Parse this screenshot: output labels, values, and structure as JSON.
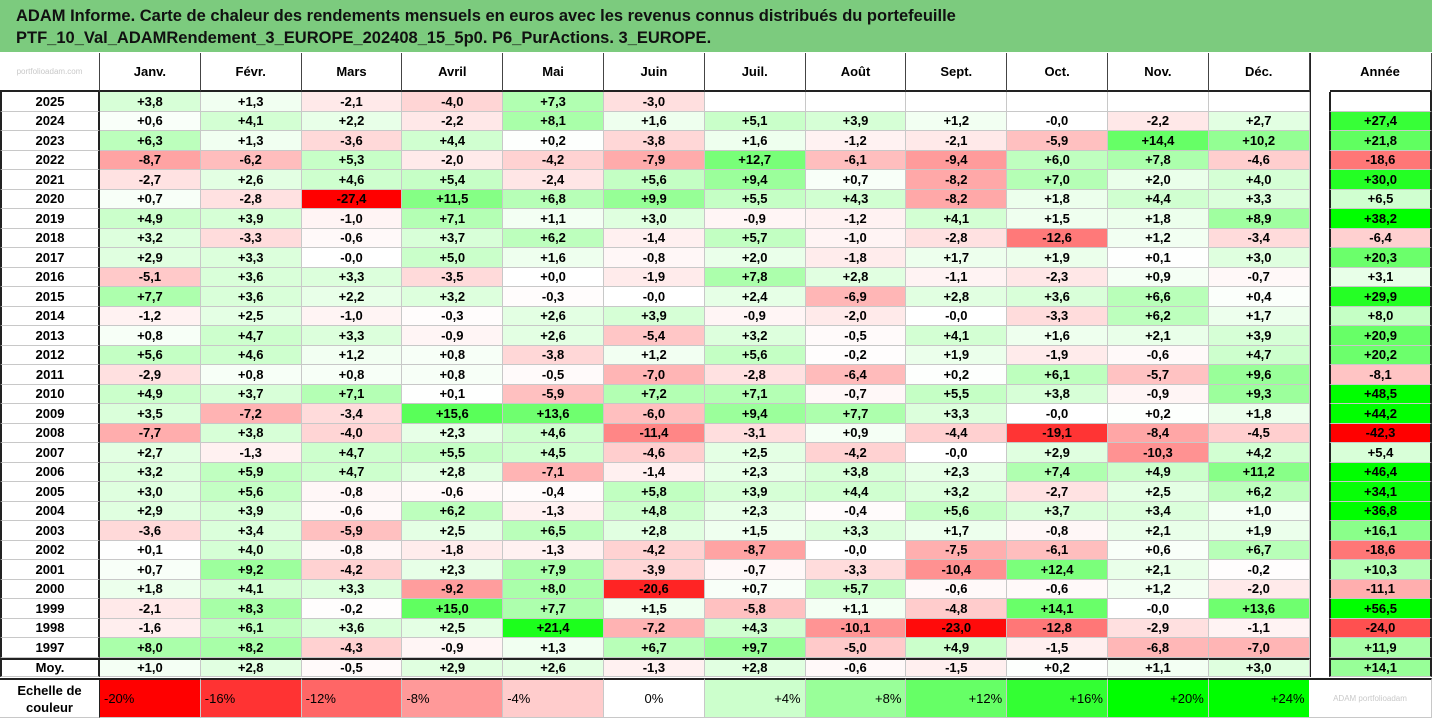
{
  "title": {
    "line1": "ADAM Informe. Carte de chaleur des rendements mensuels en euros avec les revenus connus distribués du portefeuille",
    "line2": "PTF_10_Val_ADAMRendement_3_EUROPE_202408_15_5p0. P6_PurActions. 3_EUROPE."
  },
  "watermark": "portfolioadam.com",
  "watermark_br": "ADAM portfolioadam",
  "chart_data": {
    "type": "heatmap",
    "columns": [
      "Janv.",
      "Févr.",
      "Mars",
      "Avril",
      "Mai",
      "Juin",
      "Juil.",
      "Août",
      "Sept.",
      "Oct.",
      "Nov.",
      "Déc."
    ],
    "year_column": "Année",
    "rows": [
      {
        "year": "2025",
        "values": [
          "+3,8",
          "+1,3",
          "-2,1",
          "-4,0",
          "+7,3",
          "-3,0",
          "",
          "",
          "",
          "",
          "",
          ""
        ],
        "annual": ""
      },
      {
        "year": "2024",
        "values": [
          "+0,6",
          "+4,1",
          "+2,2",
          "-2,2",
          "+8,1",
          "+1,6",
          "+5,1",
          "+3,9",
          "+1,2",
          "-0,0",
          "-2,2",
          "+2,7"
        ],
        "annual": "+27,4"
      },
      {
        "year": "2023",
        "values": [
          "+6,3",
          "+1,3",
          "-3,6",
          "+4,4",
          "+0,2",
          "-3,8",
          "+1,6",
          "-1,2",
          "-2,1",
          "-5,9",
          "+14,4",
          "+10,2"
        ],
        "annual": "+21,8"
      },
      {
        "year": "2022",
        "values": [
          "-8,7",
          "-6,2",
          "+5,3",
          "-2,0",
          "-4,2",
          "-7,9",
          "+12,7",
          "-6,1",
          "-9,4",
          "+6,0",
          "+7,8",
          "-4,6"
        ],
        "annual": "-18,6"
      },
      {
        "year": "2021",
        "values": [
          "-2,7",
          "+2,6",
          "+4,6",
          "+5,4",
          "-2,4",
          "+5,6",
          "+9,4",
          "+0,7",
          "-8,2",
          "+7,0",
          "+2,0",
          "+4,0"
        ],
        "annual": "+30,0"
      },
      {
        "year": "2020",
        "values": [
          "+0,7",
          "-2,8",
          "-27,4",
          "+11,5",
          "+6,8",
          "+9,9",
          "+5,5",
          "+4,3",
          "-8,2",
          "+1,8",
          "+4,4",
          "+3,3"
        ],
        "annual": "+6,5"
      },
      {
        "year": "2019",
        "values": [
          "+4,9",
          "+3,9",
          "-1,0",
          "+7,1",
          "+1,1",
          "+3,0",
          "-0,9",
          "-1,2",
          "+4,1",
          "+1,5",
          "+1,8",
          "+8,9"
        ],
        "annual": "+38,2"
      },
      {
        "year": "2018",
        "values": [
          "+3,2",
          "-3,3",
          "-0,6",
          "+3,7",
          "+6,2",
          "-1,4",
          "+5,7",
          "-1,0",
          "-2,8",
          "-12,6",
          "+1,2",
          "-3,4"
        ],
        "annual": "-6,4"
      },
      {
        "year": "2017",
        "values": [
          "+2,9",
          "+3,3",
          "-0,0",
          "+5,0",
          "+1,6",
          "-0,8",
          "+2,0",
          "-1,8",
          "+1,7",
          "+1,9",
          "+0,1",
          "+3,0"
        ],
        "annual": "+20,3"
      },
      {
        "year": "2016",
        "values": [
          "-5,1",
          "+3,6",
          "+3,3",
          "-3,5",
          "+0,0",
          "-1,9",
          "+7,8",
          "+2,8",
          "-1,1",
          "-2,3",
          "+0,9",
          "-0,7"
        ],
        "annual": "+3,1"
      },
      {
        "year": "2015",
        "values": [
          "+7,7",
          "+3,6",
          "+2,2",
          "+3,2",
          "-0,3",
          "-0,0",
          "+2,4",
          "-6,9",
          "+2,8",
          "+3,6",
          "+6,6",
          "+0,4"
        ],
        "annual": "+29,9"
      },
      {
        "year": "2014",
        "values": [
          "-1,2",
          "+2,5",
          "-1,0",
          "-0,3",
          "+2,6",
          "+3,9",
          "-0,9",
          "-2,0",
          "-0,0",
          "-3,3",
          "+6,2",
          "+1,7"
        ],
        "annual": "+8,0"
      },
      {
        "year": "2013",
        "values": [
          "+0,8",
          "+4,7",
          "+3,3",
          "-0,9",
          "+2,6",
          "-5,4",
          "+3,2",
          "-0,5",
          "+4,1",
          "+1,6",
          "+2,1",
          "+3,9"
        ],
        "annual": "+20,9"
      },
      {
        "year": "2012",
        "values": [
          "+5,6",
          "+4,6",
          "+1,2",
          "+0,8",
          "-3,8",
          "+1,2",
          "+5,6",
          "-0,2",
          "+1,9",
          "-1,9",
          "-0,6",
          "+4,7"
        ],
        "annual": "+20,2"
      },
      {
        "year": "2011",
        "values": [
          "-2,9",
          "+0,8",
          "+0,8",
          "+0,8",
          "-0,5",
          "-7,0",
          "-2,8",
          "-6,4",
          "+0,2",
          "+6,1",
          "-5,7",
          "+9,6"
        ],
        "annual": "-8,1"
      },
      {
        "year": "2010",
        "values": [
          "+4,9",
          "+3,7",
          "+7,1",
          "+0,1",
          "-5,9",
          "+7,2",
          "+7,1",
          "-0,7",
          "+5,5",
          "+3,8",
          "-0,9",
          "+9,3"
        ],
        "annual": "+48,5"
      },
      {
        "year": "2009",
        "values": [
          "+3,5",
          "-7,2",
          "-3,4",
          "+15,6",
          "+13,6",
          "-6,0",
          "+9,4",
          "+7,7",
          "+3,3",
          "-0,0",
          "+0,2",
          "+1,8"
        ],
        "annual": "+44,2"
      },
      {
        "year": "2008",
        "values": [
          "-7,7",
          "+3,8",
          "-4,0",
          "+2,3",
          "+4,6",
          "-11,4",
          "-3,1",
          "+0,9",
          "-4,4",
          "-19,1",
          "-8,4",
          "-4,5"
        ],
        "annual": "-42,3"
      },
      {
        "year": "2007",
        "values": [
          "+2,7",
          "-1,3",
          "+4,7",
          "+5,5",
          "+4,5",
          "-4,6",
          "+2,5",
          "-4,2",
          "-0,0",
          "+2,9",
          "-10,3",
          "+4,2"
        ],
        "annual": "+5,4"
      },
      {
        "year": "2006",
        "values": [
          "+3,2",
          "+5,9",
          "+4,7",
          "+2,8",
          "-7,1",
          "-1,4",
          "+2,3",
          "+3,8",
          "+2,3",
          "+7,4",
          "+4,9",
          "+11,2"
        ],
        "annual": "+46,4"
      },
      {
        "year": "2005",
        "values": [
          "+3,0",
          "+5,6",
          "-0,8",
          "-0,6",
          "-0,4",
          "+5,8",
          "+3,9",
          "+4,4",
          "+3,2",
          "-2,7",
          "+2,5",
          "+6,2"
        ],
        "annual": "+34,1"
      },
      {
        "year": "2004",
        "values": [
          "+2,9",
          "+3,9",
          "-0,6",
          "+6,2",
          "-1,3",
          "+4,8",
          "+2,3",
          "-0,4",
          "+5,6",
          "+3,7",
          "+3,4",
          "+1,0"
        ],
        "annual": "+36,8"
      },
      {
        "year": "2003",
        "values": [
          "-3,6",
          "+3,4",
          "-5,9",
          "+2,5",
          "+6,5",
          "+2,8",
          "+1,5",
          "+3,3",
          "+1,7",
          "-0,8",
          "+2,1",
          "+1,9"
        ],
        "annual": "+16,1"
      },
      {
        "year": "2002",
        "values": [
          "+0,1",
          "+4,0",
          "-0,8",
          "-1,8",
          "-1,3",
          "-4,2",
          "-8,7",
          "-0,0",
          "-7,5",
          "-6,1",
          "+0,6",
          "+6,7"
        ],
        "annual": "-18,6"
      },
      {
        "year": "2001",
        "values": [
          "+0,7",
          "+9,2",
          "-4,2",
          "+2,3",
          "+7,9",
          "-3,9",
          "-0,7",
          "-3,3",
          "-10,4",
          "+12,4",
          "+2,1",
          "-0,2"
        ],
        "annual": "+10,3"
      },
      {
        "year": "2000",
        "values": [
          "+1,8",
          "+4,1",
          "+3,3",
          "-9,2",
          "+8,0",
          "-20,6",
          "+0,7",
          "+5,7",
          "-0,6",
          "-0,6",
          "+1,2",
          "-2,0"
        ],
        "annual": "-11,1"
      },
      {
        "year": "1999",
        "values": [
          "-2,1",
          "+8,3",
          "-0,2",
          "+15,0",
          "+7,7",
          "+1,5",
          "-5,8",
          "+1,1",
          "-4,8",
          "+14,1",
          "-0,0",
          "+13,6"
        ],
        "annual": "+56,5"
      },
      {
        "year": "1998",
        "values": [
          "-1,6",
          "+6,1",
          "+3,6",
          "+2,5",
          "+21,4",
          "-7,2",
          "+4,3",
          "-10,1",
          "-23,0",
          "-12,8",
          "-2,9",
          "-1,1"
        ],
        "annual": "-24,0"
      },
      {
        "year": "1997",
        "values": [
          "+8,0",
          "+8,2",
          "-4,3",
          "-0,9",
          "+1,3",
          "+6,7",
          "+9,7",
          "-5,0",
          "+4,9",
          "-1,5",
          "-6,8",
          "-7,0"
        ],
        "annual": "+11,9"
      }
    ],
    "average_row": {
      "label": "Moy.",
      "values": [
        "+1,0",
        "+2,8",
        "-0,5",
        "+2,9",
        "+2,6",
        "-1,3",
        "+2,8",
        "-0,6",
        "-1,5",
        "+0,2",
        "+1,1",
        "+3,0"
      ],
      "annual": "+14,1"
    },
    "legend": {
      "label_line1": "Echelle de",
      "label_line2": "couleur",
      "stops": [
        "-20%",
        "-16%",
        "-12%",
        "-8%",
        "-4%",
        "0%",
        "+4%",
        "+8%",
        "+12%",
        "+16%",
        "+20%",
        "+24%"
      ],
      "stop_values": [
        -20,
        -16,
        -12,
        -8,
        -4,
        0,
        4,
        8,
        12,
        16,
        20,
        24
      ]
    },
    "colors": {
      "negative": "#ff0000",
      "neutral": "#ffffff",
      "positive": "#00ff00",
      "title_bg": "#7ccb7e"
    }
  }
}
